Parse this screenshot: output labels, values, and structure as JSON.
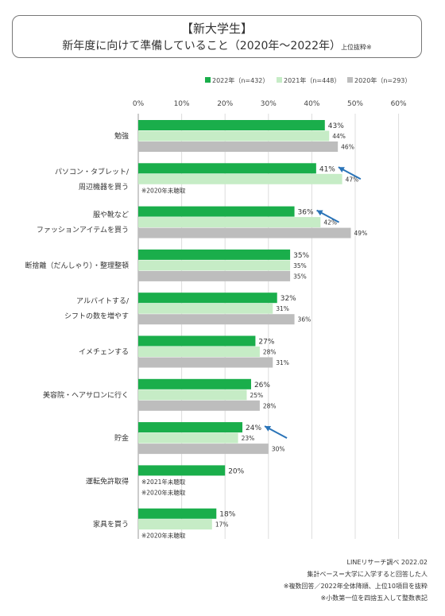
{
  "title": {
    "line1": "【新大学生】",
    "line2": "新年度に向けて準備していること（2020年～2022年）",
    "note": "上位抜粋※"
  },
  "colors": {
    "s2022": "#1aae4b",
    "s2021": "#c6ecc6",
    "s2020": "#bdbdbd",
    "arrow": "#2a74b8",
    "grid": "#dddddd"
  },
  "footer": {
    "line1": "LINEリサーチ調べ 2022.02",
    "line2": "集計ベース＝大学に入学すると回答した人",
    "line3": "※複数回答／2022年全体降順、上位10項目を抜粋",
    "line4": "※小数第一位を四捨五入して整数表記"
  },
  "chart_data": {
    "type": "bar",
    "orientation": "horizontal",
    "xlim": [
      0,
      60
    ],
    "ticks": [
      "0%",
      "10%",
      "20%",
      "30%",
      "40%",
      "50%",
      "60%"
    ],
    "legend": [
      "2022年（n=432）",
      "2021年（n=448）",
      "2020年（n=293）"
    ],
    "legend_position": "top-right",
    "categories": [
      {
        "label": [
          "勉強"
        ],
        "values": [
          43,
          44,
          46
        ],
        "notes": []
      },
      {
        "label": [
          "パソコン・タブレット/",
          "周辺機器を買う"
        ],
        "values": [
          41,
          47,
          null
        ],
        "notes": [
          "※2020年未聴取"
        ]
      },
      {
        "label": [
          "服や靴など",
          "ファッションアイテムを買う"
        ],
        "values": [
          36,
          42,
          49
        ],
        "notes": []
      },
      {
        "label": [
          "断捨離（だんしゃり）・整理整頓"
        ],
        "values": [
          35,
          35,
          35
        ],
        "notes": []
      },
      {
        "label": [
          "アルバイトする/",
          "シフトの数を増やす"
        ],
        "values": [
          32,
          31,
          36
        ],
        "notes": []
      },
      {
        "label": [
          "イメチェンする"
        ],
        "values": [
          27,
          28,
          31
        ],
        "notes": []
      },
      {
        "label": [
          "美容院・ヘアサロンに行く"
        ],
        "values": [
          26,
          25,
          28
        ],
        "notes": []
      },
      {
        "label": [
          "貯金"
        ],
        "values": [
          24,
          23,
          30
        ],
        "notes": []
      },
      {
        "label": [
          "運転免許取得"
        ],
        "values": [
          20,
          null,
          null
        ],
        "notes": [
          "※2021年未聴取",
          "※2020年未聴取"
        ]
      },
      {
        "label": [
          "家具を買う"
        ],
        "values": [
          18,
          17,
          null
        ],
        "notes": [
          "※2020年未聴取"
        ]
      }
    ],
    "arrows_on": [
      "パソコン・タブレット/",
      "服や靴など",
      "貯金"
    ]
  }
}
